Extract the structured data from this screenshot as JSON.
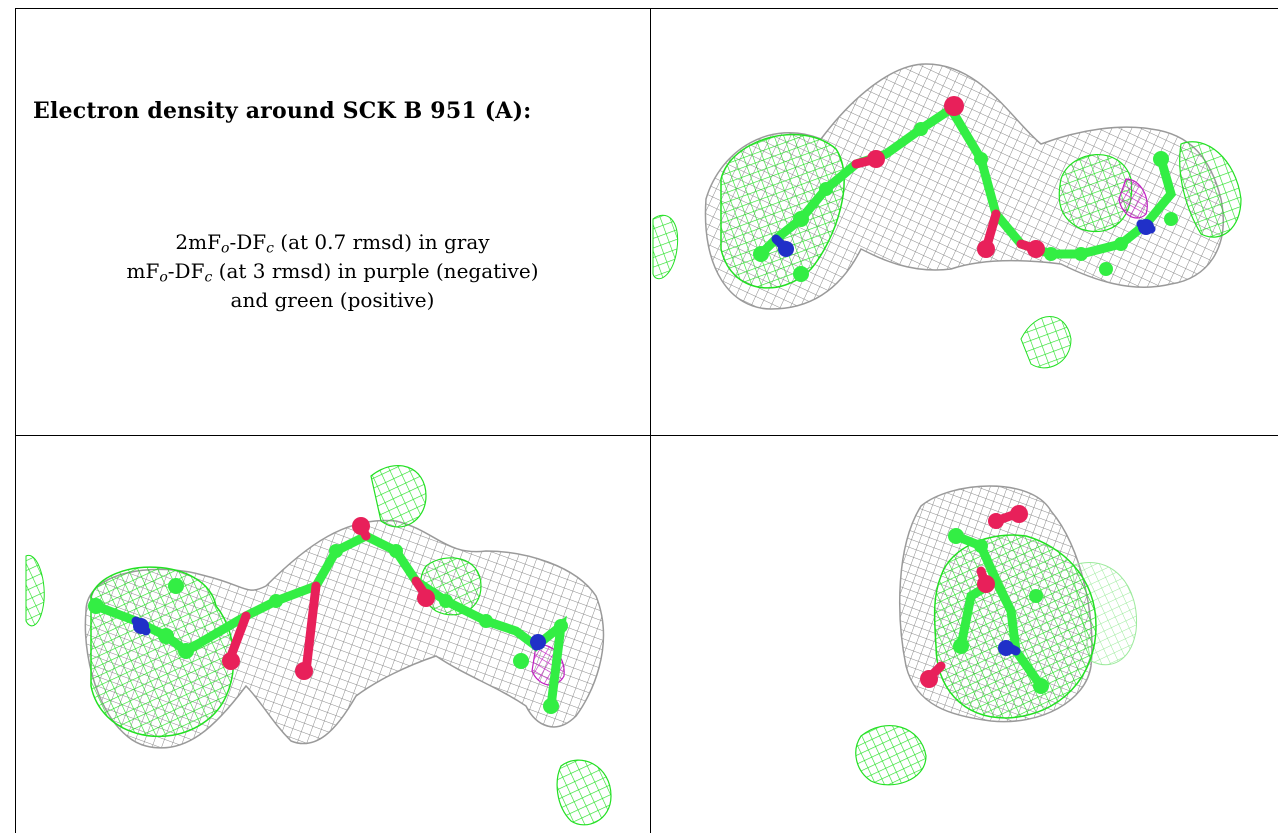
{
  "caption": {
    "title": "Electron density around SCK B 951 (A):",
    "line1": {
      "pre": "2mF",
      "sub1": "o",
      "mid": "-DF",
      "sub2": "c",
      "post": " (at 0.7 rmsd) in gray"
    },
    "line2": {
      "pre": "mF",
      "sub1": "o",
      "mid": "-DF",
      "sub2": "c",
      "post": " (at 3 rmsd) in purple (negative)"
    },
    "line3": "and green (positive)"
  },
  "colors": {
    "mesh_gray": "#8a8a8a",
    "mesh_green": "#22e022",
    "mesh_purple": "#c020c0",
    "atom_carbon": "#33ee44",
    "atom_oxygen": "#e8205a",
    "atom_nitrogen": "#2030c8"
  },
  "panels": [
    {
      "name": "density-view-1",
      "icon": "molecule-density-render"
    },
    {
      "name": "density-view-2",
      "icon": "molecule-density-render"
    },
    {
      "name": "density-view-3",
      "icon": "molecule-density-render"
    }
  ]
}
